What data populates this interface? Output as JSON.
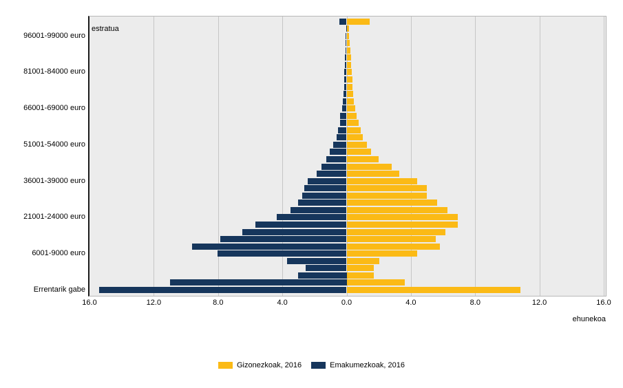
{
  "chart": {
    "corner_label": "estratua",
    "x_axis_title": "ehunekoa"
  },
  "chart_data": {
    "type": "bar",
    "subtype": "population-pyramid",
    "orientation": "horizontal",
    "title": "",
    "xlabel": "ehunekoa",
    "ylabel": "estratua",
    "unit": "percent",
    "xlim": [
      -16,
      16
    ],
    "x_ticks": [
      "16.0",
      "12.0",
      "8.0",
      "4.0",
      "0.0",
      "4.0",
      "8.0",
      "12.0",
      "16.0"
    ],
    "x_tick_values": [
      -16,
      -12,
      -8,
      -4,
      0,
      4,
      8,
      12,
      16
    ],
    "grid": true,
    "legend_position": "bottom",
    "rows_order": "bottom_to_top",
    "categories": [
      "Errentarik gabe",
      "",
      "",
      "",
      "",
      "6001-9000 euro",
      "",
      "",
      "",
      "",
      "21001-24000 euro",
      "",
      "",
      "",
      "",
      "36001-39000 euro",
      "",
      "",
      "",
      "",
      "51001-54000 euro",
      "",
      "",
      "",
      "",
      "66001-69000 euro",
      "",
      "",
      "",
      "",
      "81001-84000 euro",
      "",
      "",
      "",
      "",
      "96001-99000 euro",
      "",
      ""
    ],
    "series": [
      {
        "name": "Gizonezkoak, 2016",
        "side": "right",
        "color": "#FBBA16",
        "values": [
          10.8,
          3.6,
          1.7,
          1.7,
          2.02,
          4.37,
          5.79,
          5.55,
          6.16,
          6.9,
          6.9,
          6.29,
          5.62,
          4.98,
          4.98,
          4.41,
          3.29,
          2.8,
          2.0,
          1.53,
          1.27,
          0.99,
          0.88,
          0.73,
          0.63,
          0.53,
          0.45,
          0.42,
          0.38,
          0.35,
          0.3,
          0.28,
          0.26,
          0.24,
          0.21,
          0.16,
          0.14,
          1.42
        ]
      },
      {
        "name": "Emakumezkoak, 2016",
        "side": "left",
        "color": "#16365C",
        "values": [
          15.4,
          11.0,
          3.0,
          2.53,
          3.72,
          8.04,
          9.62,
          7.87,
          6.49,
          5.67,
          4.35,
          3.48,
          3.01,
          2.77,
          2.62,
          2.41,
          1.87,
          1.56,
          1.25,
          1.03,
          0.83,
          0.61,
          0.55,
          0.4,
          0.41,
          0.29,
          0.22,
          0.19,
          0.17,
          0.15,
          0.13,
          0.11,
          0.1,
          0.08,
          0.07,
          0.06,
          0.04,
          0.44
        ]
      }
    ],
    "plot_background": "#ECECEC",
    "gridline_color": "#C6C6C6",
    "axis_line_color": "#1A1A1A"
  }
}
